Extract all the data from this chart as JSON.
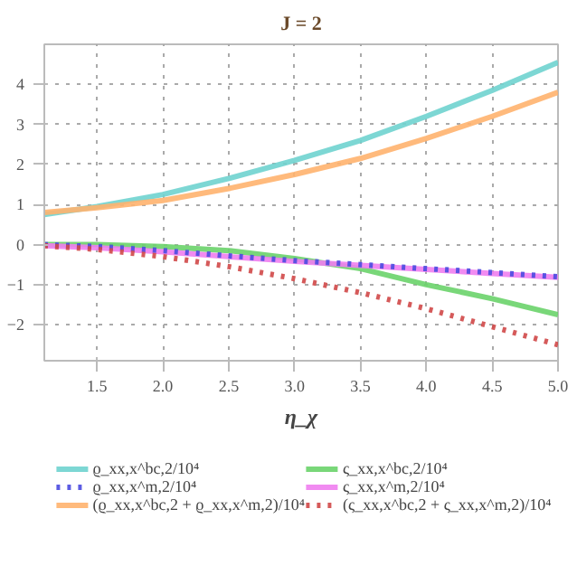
{
  "chart_data": {
    "type": "line",
    "title": "J = 2",
    "xlabel": "η_χ",
    "x": [
      1.1,
      1.5,
      2.0,
      2.5,
      3.0,
      3.5,
      4.0,
      4.5,
      5.0
    ],
    "series": [
      {
        "name": "ϱ_xx,x^bc,2/10⁴",
        "color": "#6fd3cf",
        "line_style": "solid",
        "values": [
          0.75,
          0.95,
          1.25,
          1.65,
          2.1,
          2.6,
          3.2,
          3.85,
          4.55
        ]
      },
      {
        "name": "ϱ_xx,x^m,2/10⁴",
        "color": "#4a4ae0",
        "line_style": "dotted",
        "values": [
          0.0,
          -0.05,
          -0.15,
          -0.28,
          -0.4,
          -0.5,
          -0.6,
          -0.7,
          -0.8
        ]
      },
      {
        "name": "(ϱ_xx,x^bc,2 + ϱ_xx,x^m,2)/10⁴",
        "color": "#ffb36e",
        "line_style": "solid",
        "values": [
          0.8,
          0.92,
          1.1,
          1.4,
          1.75,
          2.15,
          2.65,
          3.2,
          3.8
        ]
      },
      {
        "name": "ς_xx,x^bc,2/10⁴",
        "color": "#6ad36a",
        "line_style": "solid",
        "values": [
          0.0,
          0.0,
          -0.05,
          -0.15,
          -0.35,
          -0.6,
          -1.0,
          -1.35,
          -1.75
        ]
      },
      {
        "name": "ς_xx,x^m,2/10⁴",
        "color": "#f07ef0",
        "line_style": "solid",
        "values": [
          -0.03,
          -0.08,
          -0.18,
          -0.3,
          -0.42,
          -0.52,
          -0.62,
          -0.72,
          -0.82
        ]
      },
      {
        "name": "(ς_xx,x^bc,2 + ς_xx,x^m,2)/10⁴",
        "color": "#d04848",
        "line_style": "dotted",
        "values": [
          -0.03,
          -0.12,
          -0.3,
          -0.55,
          -0.85,
          -1.2,
          -1.6,
          -2.05,
          -2.5
        ]
      }
    ],
    "xlim": [
      1.1,
      5.0
    ],
    "ylim": [
      -2.9,
      5.0
    ],
    "xticks": [
      1.5,
      {
        "value": 2,
        "label": "2.0"
      },
      2.5,
      {
        "value": 3,
        "label": "3.0"
      },
      3.5,
      {
        "value": 4,
        "label": "4.0"
      },
      4.5,
      {
        "value": 5,
        "label": "5.0"
      }
    ],
    "yticks": [
      {
        "value": -2,
        "label": "−2"
      },
      {
        "value": -1,
        "label": "−1"
      },
      0,
      1,
      2,
      3,
      4
    ],
    "grid": true,
    "legend": "bottom"
  }
}
